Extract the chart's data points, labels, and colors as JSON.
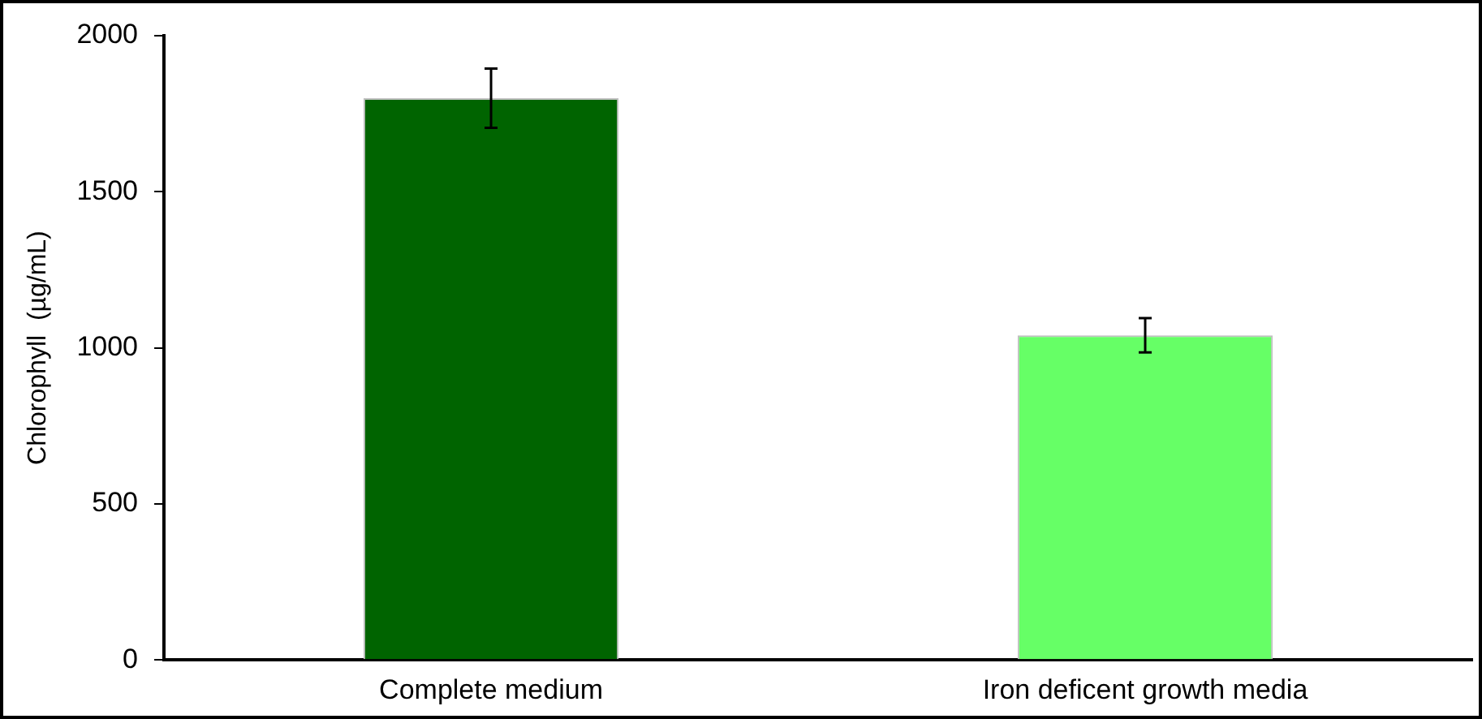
{
  "chart_data": {
    "type": "bar",
    "ylabel": "Chlorophyll  (µg/mL)",
    "categories": [
      "Complete medium",
      "Iron deficent growth media"
    ],
    "values": [
      1800,
      1040
    ],
    "colors": [
      "#006400",
      "#66ff66"
    ],
    "errors": [
      95,
      55
    ],
    "ylim": [
      0,
      2000
    ],
    "yticks": [
      0,
      500,
      1000,
      1500,
      2000
    ],
    "grid": false,
    "legend": false
  }
}
